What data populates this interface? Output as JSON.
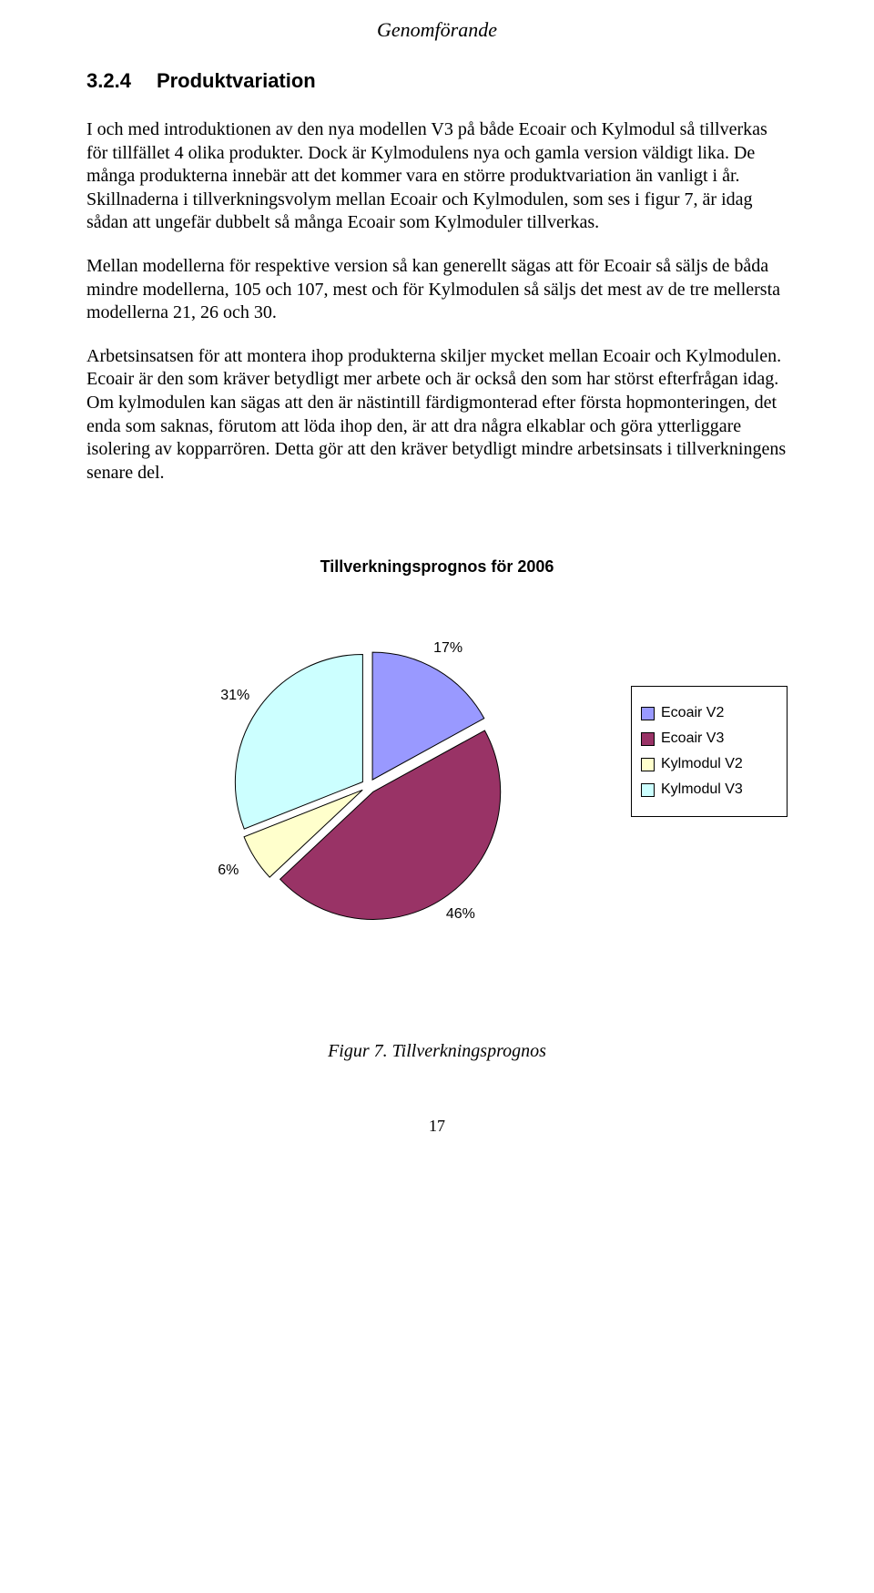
{
  "header": {
    "title": "Genomförande"
  },
  "section": {
    "number": "3.2.4",
    "title": "Produktvariation"
  },
  "paragraphs": [
    "I och med introduktionen av den nya modellen V3 på både Ecoair och Kylmodul så tillverkas för tillfället 4 olika produkter. Dock är Kylmodulens nya och gamla version väldigt lika. De många produkterna innebär att det kommer vara en större produktvariation än vanligt i år. Skillnaderna i tillverkningsvolym mellan Ecoair och Kylmodulen, som ses i figur 7, är idag sådan att ungefär dubbelt så många Ecoair som Kylmoduler tillverkas.",
    "Mellan modellerna för respektive version så kan generellt sägas att för Ecoair så säljs de båda mindre modellerna, 105 och 107, mest och för Kylmodulen så säljs det mest av de tre mellersta modellerna 21, 26 och 30.",
    "Arbetsinsatsen för att montera ihop produkterna skiljer mycket mellan Ecoair och Kylmodulen. Ecoair är den som kräver betydligt mer arbete och är också den som har störst efterfrågan idag. Om kylmodulen kan sägas att den är nästintill färdigmonterad efter första hopmonteringen, det enda som saknas, förutom att löda ihop den, är att dra några elkablar och göra ytterliggare isolering av kopparrören. Detta gör att den kräver betydligt mindre arbetsinsats i tillverkningens senare del."
  ],
  "chart": {
    "type": "pie",
    "title": "Tillverkningsprognos för 2006",
    "background_color": "#ffffff",
    "title_fontsize": 18,
    "label_fontsize": 16,
    "slice_gap": 8,
    "radius": 140,
    "stroke_color": "#000000",
    "slices": [
      {
        "label": "Ecoair V2",
        "value": 17,
        "pct_display": "17%",
        "color": "#9999ff"
      },
      {
        "label": "Ecoair V3",
        "value": 46,
        "pct_display": "46%",
        "color": "#993366"
      },
      {
        "label": "Kylmodul V2",
        "value": 6,
        "pct_display": "6%",
        "color": "#ffffcc"
      },
      {
        "label": "Kylmodul V3",
        "value": 31,
        "pct_display": "31%",
        "color": "#ccffff"
      }
    ],
    "legend_border": "#000000",
    "caption": "Figur 7. Tillverkningsprognos"
  },
  "page_number": "17"
}
